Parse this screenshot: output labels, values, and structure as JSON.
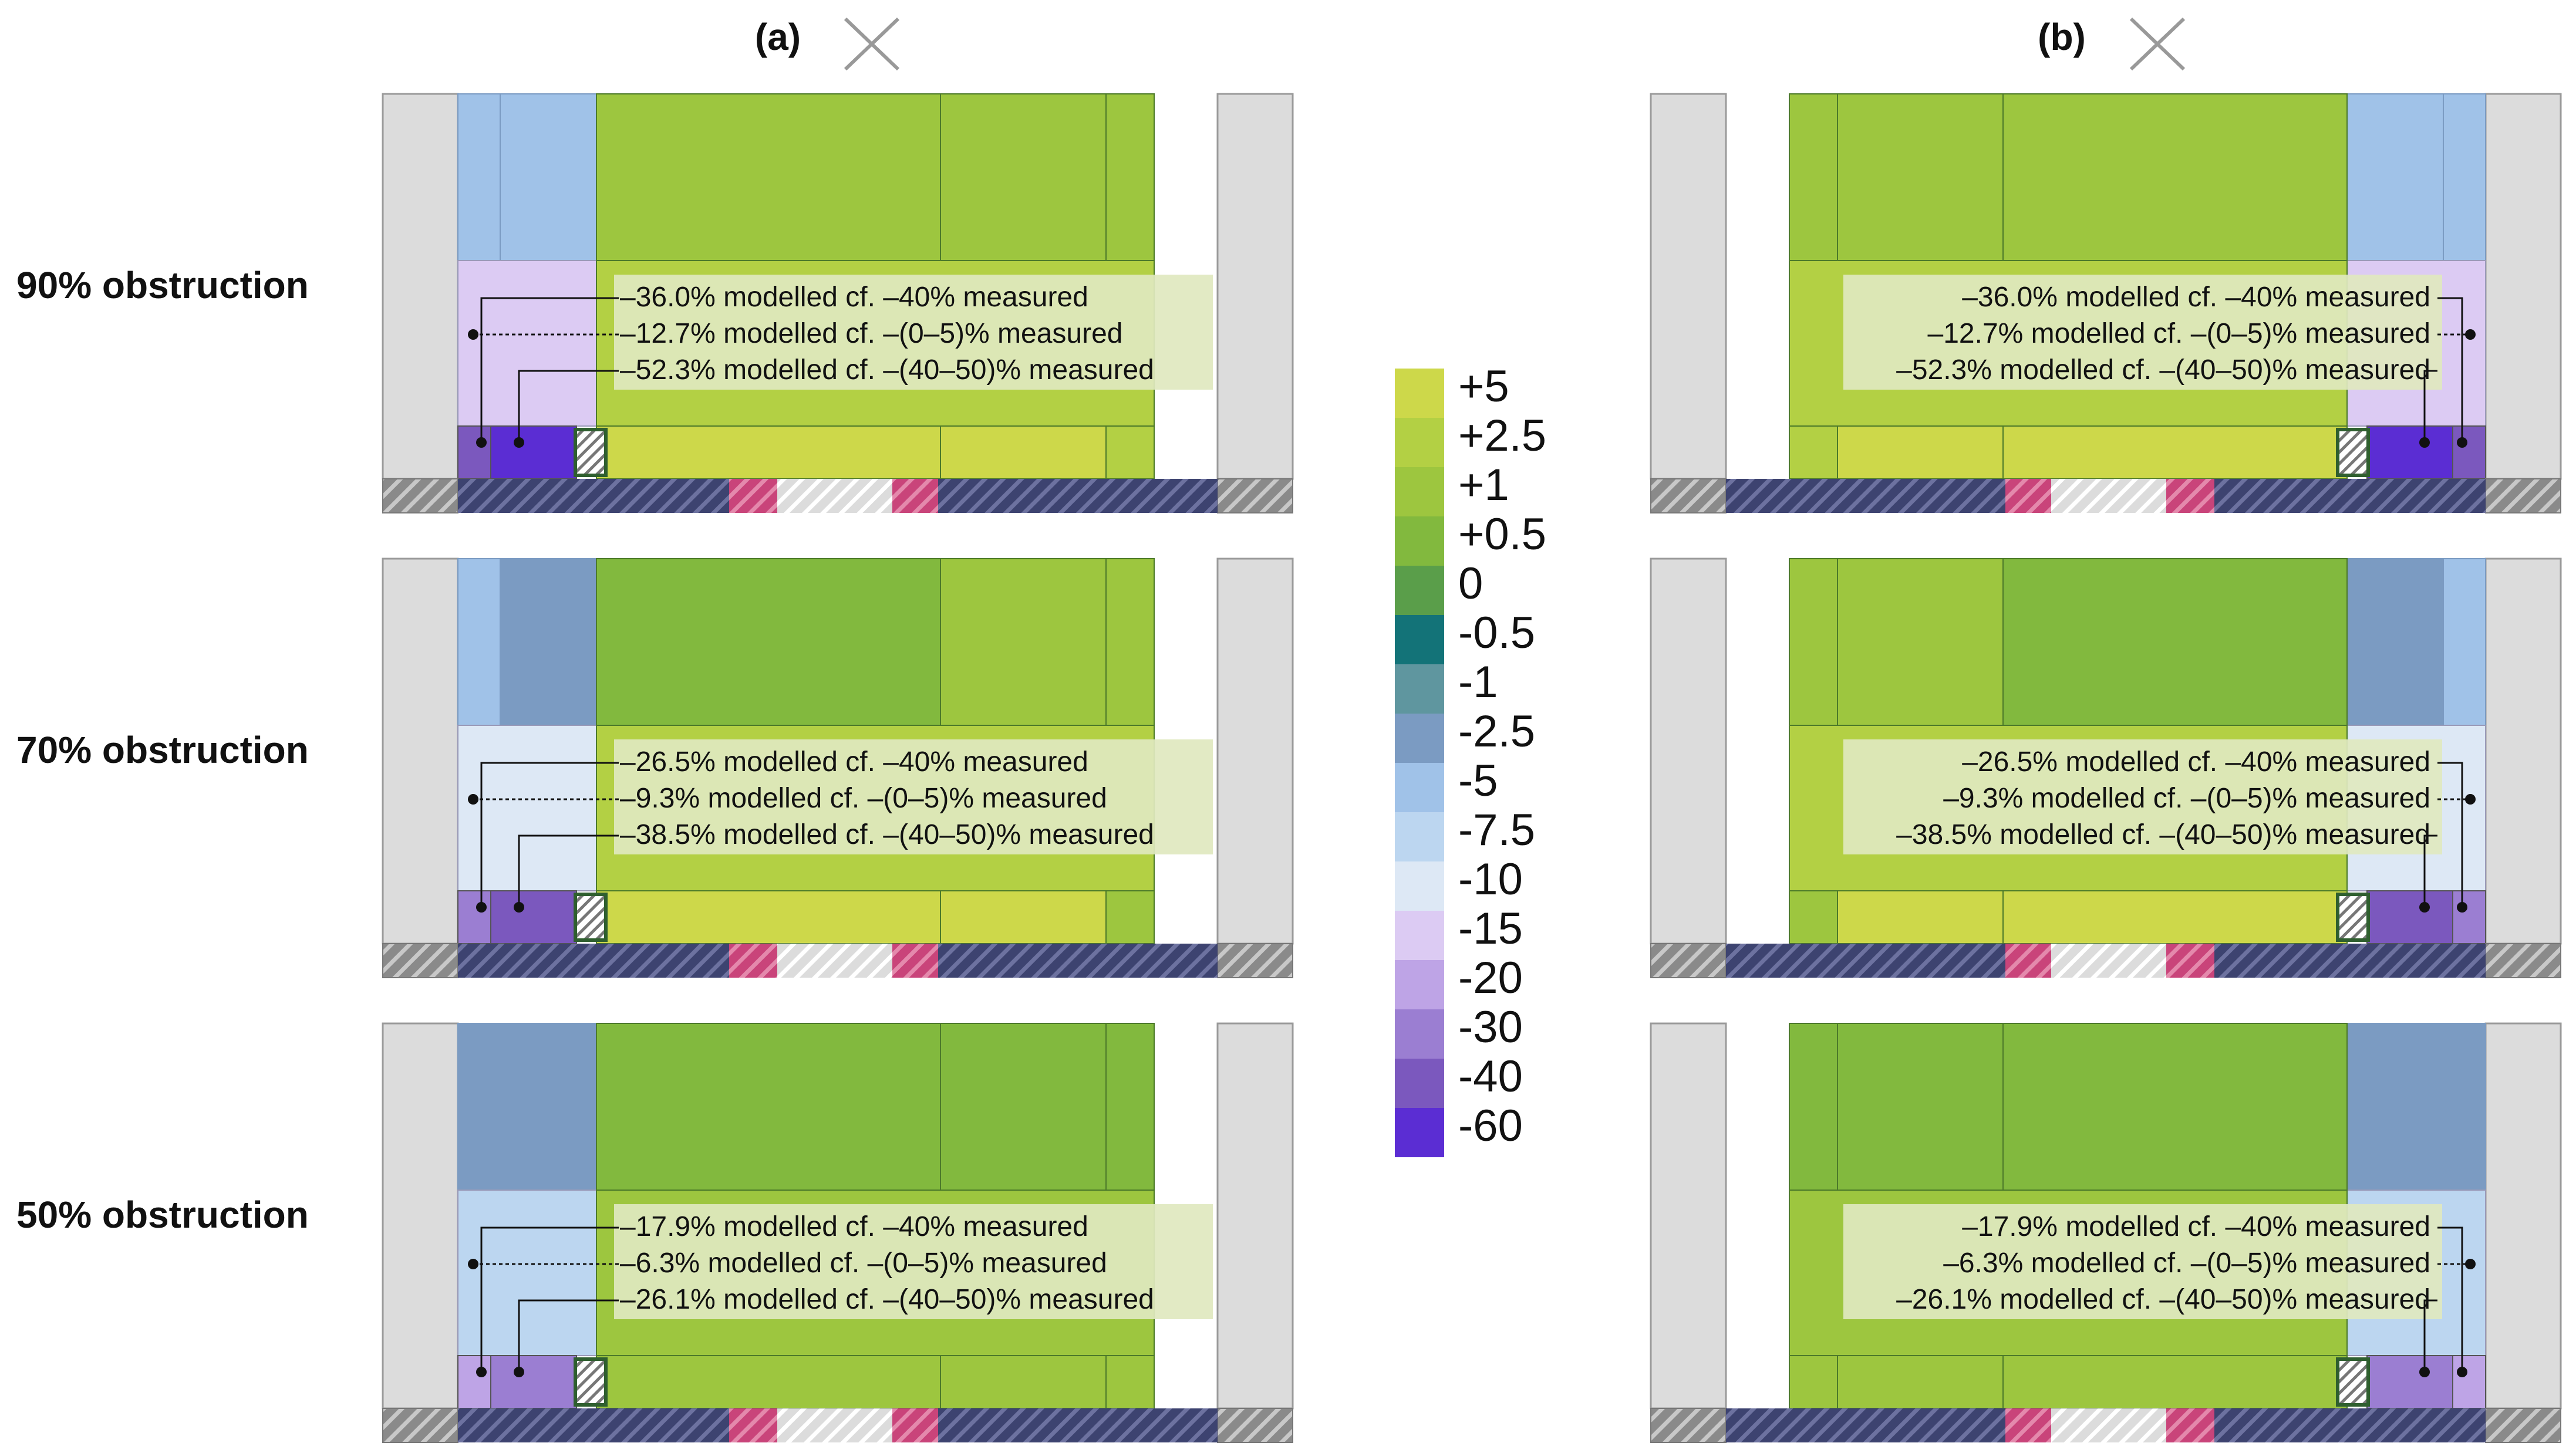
{
  "panels": [
    {
      "id": "a",
      "label": "(a)",
      "icon": "close-icon"
    },
    {
      "id": "b",
      "label": "(b)",
      "icon": "close-icon"
    }
  ],
  "legend": {
    "ticks": [
      "+5",
      "+2.5",
      "+1",
      "+0.5",
      "0",
      "-0.5",
      "-1",
      "-2.5",
      "-5",
      "-7.5",
      "-10",
      "-15",
      "-20",
      "-30",
      "-40",
      "-60"
    ],
    "colors": [
      "#cdd84a",
      "#b3d044",
      "#9dc63f",
      "#82b93e",
      "#5a9e4a",
      "#137378",
      "#5f969f",
      "#7b9bc2",
      "#a0c2e8",
      "#bcd6f0",
      "#dde8f5",
      "#dccbf3",
      "#bea4e6",
      "#9b7ed2",
      "#7b58be",
      "#5b2dd3"
    ]
  },
  "palette": {
    "wall": "#dcdcdc",
    "wall_edge": "#9a9a9a",
    "floor_blue": "#3d4370",
    "floor_grey": "#8a8a8a",
    "floor_pink": "#c9447a",
    "floor_light": "#d9d9d9",
    "annotation_box": "#dfe8bf"
  },
  "rows": [
    {
      "label": "90% obstruction",
      "annotations": [
        "–36.0% modelled cf. –40% measured",
        "–12.7% modelled cf. –(0–5)% measured",
        "–52.3% modelled cf. –(40–50)% measured"
      ],
      "cells": {
        "side_top": "-5",
        "side_mid": "-15",
        "corner_left": "-40",
        "corner_right": "-60",
        "main_top_left": "+1",
        "main_top_right": "+1",
        "main_top_edge": "+1",
        "main_mid": "+2.5",
        "main_bottom_left": "+5",
        "main_bottom_right": "+5",
        "main_bottom_edge": "+2.5"
      }
    },
    {
      "label": "70% obstruction",
      "annotations": [
        "–26.5% modelled cf. –40% measured",
        "–9.3% modelled cf. –(0–5)% measured",
        "–38.5% modelled cf. –(40–50)% measured"
      ],
      "cells": {
        "side_top": "-5",
        "side_top_inner": "-2.5",
        "side_mid": "-10",
        "corner_left": "-30",
        "corner_right": "-40",
        "main_top_left": "+0.5",
        "main_top_right": "+1",
        "main_top_edge": "+1",
        "main_mid": "+2.5",
        "main_bottom_left": "+5",
        "main_bottom_right": "+5",
        "main_bottom_edge": "+1"
      }
    },
    {
      "label": "50% obstruction",
      "annotations": [
        "–17.9% modelled cf. –40% measured",
        "–6.3% modelled cf. –(0–5)% measured",
        "–26.1% modelled cf. –(40–50)% measured"
      ],
      "cells": {
        "side_top": "-2.5",
        "side_mid": "-7.5",
        "corner_left": "-20",
        "corner_right": "-30",
        "main_top_left": "+0.5",
        "main_top_right": "+0.5",
        "main_top_edge": "+0.5",
        "main_mid": "+1",
        "main_bottom_left": "+1",
        "main_bottom_right": "+1",
        "main_bottom_edge": "+1"
      }
    }
  ]
}
